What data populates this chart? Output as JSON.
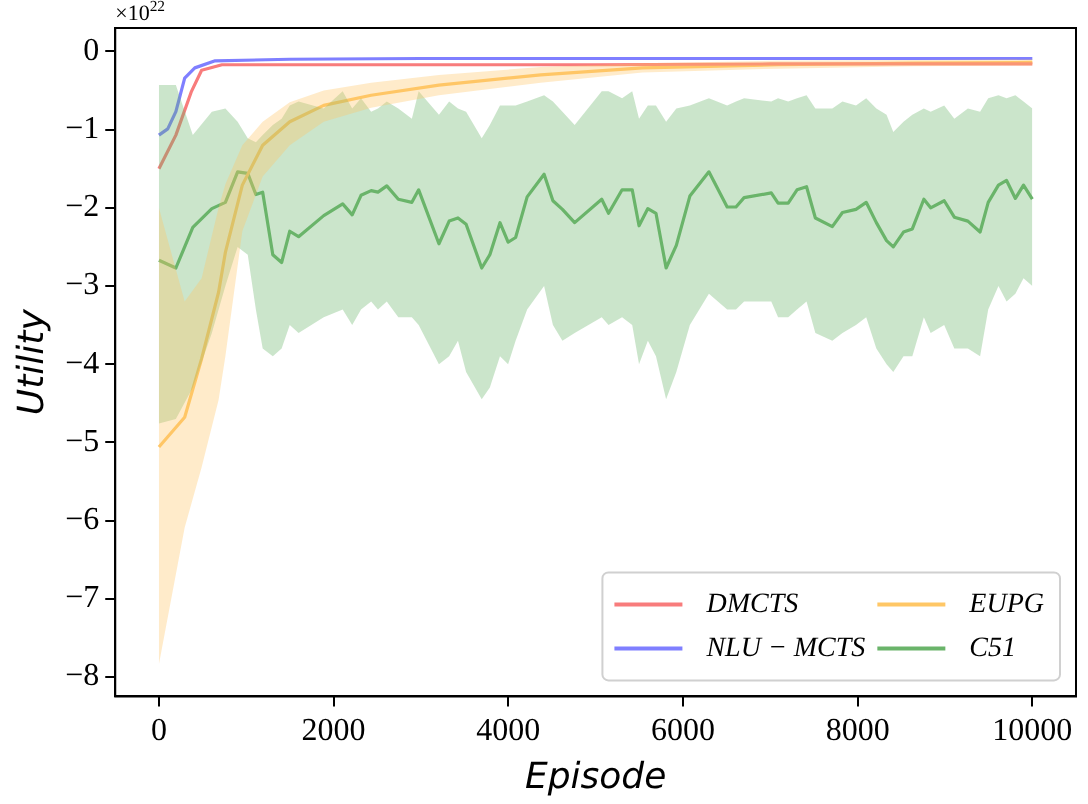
{
  "chart_data": {
    "type": "line",
    "xlabel": "Episode",
    "ylabel": "Utility",
    "annotations": [
      "×10$^{22}$"
    ],
    "xlim": [
      -500,
      10500
    ],
    "ylim": [
      -8.25,
      0.3
    ],
    "xticks": [
      0,
      2000,
      4000,
      6000,
      8000,
      10000
    ],
    "yticks": [
      -8,
      -7,
      -6,
      -5,
      -4,
      -3,
      -2,
      -1,
      0
    ],
    "grid": false,
    "legend": "bottom right",
    "marker": "none",
    "line_style": "solid",
    "series": [
      {
        "name": "DMCTS",
        "color": "#f87c7c",
        "x": [
          0,
          194,
          373,
          489,
          722,
          1500,
          3000,
          5000,
          7000,
          10000
        ],
        "values": [
          -1.5,
          -1.07,
          -0.51,
          -0.24,
          -0.17,
          -0.17,
          -0.17,
          -0.17,
          -0.16,
          -0.16
        ]
      },
      {
        "name": "NLU − MCTS",
        "color": "#7f7fff",
        "x": [
          0,
          101,
          194,
          295,
          411,
          644,
          1500,
          3000,
          5000,
          7000,
          10000
        ],
        "values": [
          -1.07,
          -0.99,
          -0.77,
          -0.34,
          -0.21,
          -0.12,
          -0.1,
          -0.09,
          -0.09,
          -0.09,
          -0.09
        ]
      },
      {
        "name": "EUPG",
        "color": "#ffc766",
        "x": [
          0,
          295,
          489,
          683,
          761,
          955,
          1188,
          1498,
          1887,
          2430,
          3206,
          4371,
          5536,
          7089,
          8641,
          10000
        ],
        "values": [
          -5.06,
          -4.68,
          -3.93,
          -3.08,
          -2.57,
          -1.71,
          -1.2,
          -0.9,
          -0.69,
          -0.56,
          -0.43,
          -0.3,
          -0.21,
          -0.17,
          -0.15,
          -0.14
        ],
        "upper": [
          -2.0,
          -3.2,
          -2.9,
          -2.0,
          -1.7,
          -1.2,
          -0.9,
          -0.65,
          -0.5,
          -0.4,
          -0.3,
          -0.2,
          -0.15,
          -0.12,
          -0.11,
          -0.1
        ],
        "lower": [
          -7.84,
          -6.09,
          -5.32,
          -4.46,
          -3.9,
          -2.3,
          -1.6,
          -1.2,
          -0.9,
          -0.72,
          -0.56,
          -0.4,
          -0.27,
          -0.22,
          -0.19,
          -0.18
        ]
      },
      {
        "name": "C51",
        "color": "#6ab46a",
        "x": [
          0,
          194,
          388,
          606,
          761,
          901,
          1017,
          1110,
          1188,
          1304,
          1405,
          1498,
          1599,
          1887,
          2104,
          2213,
          2314,
          2430,
          2508,
          2609,
          2741,
          2896,
          2974,
          3206,
          3323,
          3424,
          3517,
          3696,
          3789,
          3905,
          3998,
          4084,
          4216,
          4410,
          4511,
          4620,
          4760,
          5070,
          5148,
          5303,
          5419,
          5497,
          5598,
          5691,
          5807,
          5924,
          6079,
          6297,
          6506,
          6607,
          6700,
          7011,
          7089,
          7205,
          7306,
          7415,
          7516,
          7710,
          7826,
          7981,
          8098,
          8214,
          8331,
          8408,
          8525,
          8626,
          8758,
          8836,
          8991,
          9107,
          9262,
          9402,
          9495,
          9612,
          9705,
          9806,
          9899,
          10000
        ],
        "values": [
          -2.67,
          -2.77,
          -2.25,
          -2.01,
          -1.93,
          -1.54,
          -1.56,
          -1.83,
          -1.8,
          -2.6,
          -2.7,
          -2.3,
          -2.37,
          -2.1,
          -1.95,
          -2.09,
          -1.84,
          -1.78,
          -1.8,
          -1.72,
          -1.89,
          -1.93,
          -1.77,
          -2.46,
          -2.17,
          -2.13,
          -2.21,
          -2.77,
          -2.6,
          -2.19,
          -2.44,
          -2.38,
          -1.86,
          -1.57,
          -1.91,
          -2.02,
          -2.19,
          -1.89,
          -2.07,
          -1.77,
          -1.77,
          -2.23,
          -2.01,
          -2.07,
          -2.77,
          -2.48,
          -1.85,
          -1.54,
          -1.99,
          -1.99,
          -1.87,
          -1.81,
          -1.94,
          -1.94,
          -1.77,
          -1.73,
          -2.13,
          -2.24,
          -2.06,
          -2.02,
          -1.93,
          -2.19,
          -2.42,
          -2.5,
          -2.31,
          -2.27,
          -1.89,
          -2.0,
          -1.91,
          -2.12,
          -2.17,
          -2.31,
          -1.93,
          -1.71,
          -1.65,
          -1.88,
          -1.71,
          -1.89
        ],
        "upper": [
          -0.43,
          -0.43,
          -1.07,
          -0.77,
          -0.73,
          -0.9,
          -1.11,
          -1.16,
          -1.07,
          -0.94,
          -0.86,
          -0.69,
          -0.64,
          -0.73,
          -0.51,
          -0.73,
          -0.6,
          -0.77,
          -0.73,
          -0.64,
          -0.73,
          -0.86,
          -0.51,
          -0.81,
          -0.64,
          -0.73,
          -0.77,
          -1.11,
          -0.94,
          -0.69,
          -0.69,
          -0.69,
          -0.64,
          -0.56,
          -0.64,
          -0.77,
          -0.94,
          -0.51,
          -0.51,
          -0.6,
          -0.51,
          -0.86,
          -0.69,
          -0.69,
          -0.9,
          -0.73,
          -0.69,
          -0.6,
          -0.69,
          -0.64,
          -0.6,
          -0.64,
          -0.6,
          -0.64,
          -0.6,
          -0.56,
          -0.73,
          -0.73,
          -0.64,
          -0.69,
          -0.6,
          -0.73,
          -0.81,
          -1.03,
          -0.9,
          -0.81,
          -0.73,
          -0.77,
          -0.69,
          -0.86,
          -0.73,
          -0.77,
          -0.6,
          -0.56,
          -0.6,
          -0.56,
          -0.64,
          -0.73
        ],
        "lower": [
          -4.76,
          -4.7,
          -4.3,
          -3.6,
          -3.0,
          -2.5,
          -2.6,
          -3.3,
          -3.8,
          -3.9,
          -3.8,
          -3.5,
          -3.6,
          -3.4,
          -3.3,
          -3.5,
          -3.3,
          -3.2,
          -3.3,
          -3.2,
          -3.4,
          -3.4,
          -3.5,
          -4.0,
          -3.9,
          -3.7,
          -4.1,
          -4.45,
          -4.3,
          -3.9,
          -4.0,
          -3.7,
          -3.3,
          -3.0,
          -3.5,
          -3.7,
          -3.6,
          -3.4,
          -3.5,
          -3.4,
          -3.5,
          -4.0,
          -3.7,
          -3.9,
          -4.45,
          -4.1,
          -3.5,
          -3.1,
          -3.3,
          -3.3,
          -3.2,
          -3.2,
          -3.4,
          -3.4,
          -3.3,
          -3.2,
          -3.6,
          -3.7,
          -3.6,
          -3.5,
          -3.4,
          -3.8,
          -4.0,
          -4.1,
          -3.9,
          -3.9,
          -3.4,
          -3.6,
          -3.5,
          -3.8,
          -3.8,
          -3.9,
          -3.3,
          -3.0,
          -3.2,
          -3.1,
          -2.9,
          -3.0
        ]
      }
    ]
  }
}
